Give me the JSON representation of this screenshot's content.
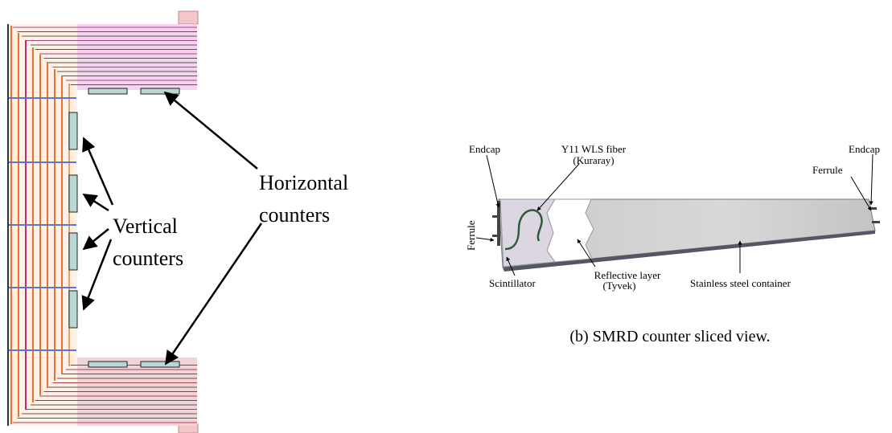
{
  "left_panel": {
    "labels": [
      {
        "lines": [
          "Horizontal",
          "counters"
        ]
      },
      {
        "lines": [
          "Vertical",
          "counters"
        ]
      }
    ]
  },
  "right_panel": {
    "labels": [
      {
        "lines": [
          "Endcap"
        ]
      },
      {
        "lines": [
          "Y11 WLS fiber",
          "(Kuraray)"
        ]
      },
      {
        "lines": [
          "Endcap"
        ]
      },
      {
        "lines": [
          "Ferrule"
        ]
      },
      {
        "lines": [
          "Ferrule"
        ]
      },
      {
        "lines": [
          "Scintillator"
        ]
      },
      {
        "lines": [
          "Reflective layer",
          "(Tyvek)"
        ]
      },
      {
        "lines": [
          "Stainless steel container"
        ]
      }
    ]
  },
  "caption": "(b) SMRD counter sliced view."
}
